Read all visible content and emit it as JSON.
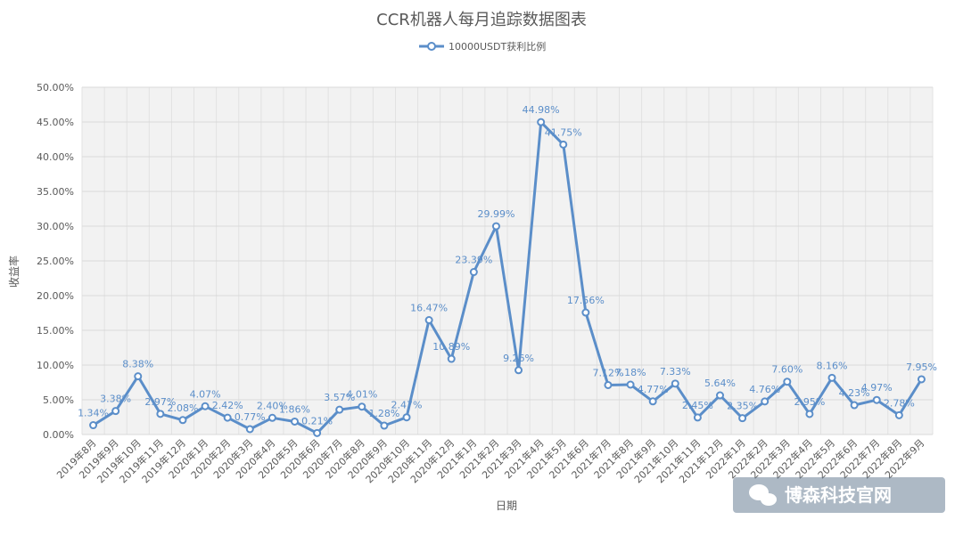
{
  "chart_data": {
    "type": "line",
    "title": "CCR机器人每月追踪数据图表",
    "xlabel": "日期",
    "ylabel": "收益率",
    "ylim": [
      0,
      50
    ],
    "yticks": [
      "0.00%",
      "5.00%",
      "10.00%",
      "15.00%",
      "20.00%",
      "25.00%",
      "30.00%",
      "35.00%",
      "40.00%",
      "45.00%",
      "50.00%"
    ],
    "legend_position": "top",
    "grid": true,
    "colors": {
      "series": "#5b8ec9",
      "data_label": "#5b8ec9"
    },
    "categories": [
      "2019年8月",
      "2019年9月",
      "2019年10月",
      "2019年11月",
      "2019年12月",
      "2020年1月",
      "2020年2月",
      "2020年3月",
      "2020年4月",
      "2020年5月",
      "2020年6月",
      "2020年7月",
      "2020年8月",
      "2020年9月",
      "2020年10月",
      "2020年11月",
      "2020年12月",
      "2021年1月",
      "2021年2月",
      "2021年3月",
      "2021年4月",
      "2021年5月",
      "2021年6月",
      "2021年7月",
      "2021年8月",
      "2021年9月",
      "2021年10月",
      "2021年11月",
      "2021年12月",
      "2022年1月",
      "2022年2月",
      "2022年3月",
      "2022年4月",
      "2022年5月",
      "2022年6月",
      "2022年7月",
      "2022年8月",
      "2022年9月"
    ],
    "series": [
      {
        "name": "10000USDT获利比例",
        "values": [
          1.34,
          3.38,
          8.38,
          2.97,
          2.08,
          4.07,
          2.42,
          0.77,
          2.4,
          1.86,
          0.21,
          3.57,
          4.01,
          1.28,
          2.47,
          16.47,
          10.89,
          23.39,
          29.99,
          9.26,
          44.98,
          41.75,
          17.56,
          7.12,
          7.18,
          4.77,
          7.33,
          2.45,
          5.64,
          2.35,
          4.76,
          7.6,
          2.95,
          8.16,
          4.23,
          4.97,
          2.78,
          7.95
        ],
        "labels": [
          "1.34%",
          "3.38%",
          "8.38%",
          "2.97%",
          "2.08%",
          "4.07%",
          "2.42%",
          "0.77%",
          "2.40%",
          "1.86%",
          "0.21%",
          "3.57%",
          "4.01%",
          "1.28%",
          "2.47%",
          "16.47%",
          "10.89%",
          "23.39%",
          "29.99%",
          "9.26%",
          "44.98%",
          "41.75%",
          "17.56%",
          "7.12%",
          "7.18%",
          "4.77%",
          "7.33%",
          "2.45%",
          "5.64%",
          "2.35%",
          "4.76%",
          "7.60%",
          "2.95%",
          "8.16%",
          "4.23%",
          "4.97%",
          "2.78%",
          "7.95%"
        ]
      }
    ]
  },
  "watermark": {
    "text": "博森科技官网",
    "icon": "wechat-icon"
  }
}
